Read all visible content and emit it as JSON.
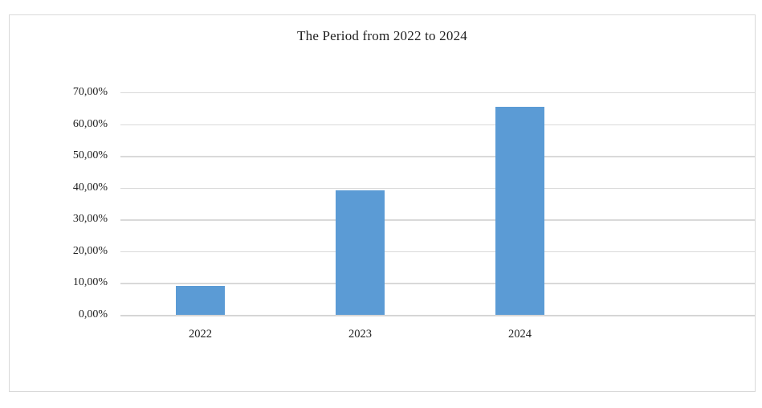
{
  "chart_data": {
    "type": "bar",
    "title": "The Period from 2022 to 2024",
    "categories": [
      "2022",
      "2023",
      "2024"
    ],
    "values": [
      9.0,
      39.2,
      65.5
    ],
    "series_unit": "percent",
    "xlabel": "",
    "ylabel": "",
    "ylim": [
      0,
      70
    ],
    "ytick_step": 10,
    "ytick_labels": [
      "0,00%",
      "10,00%",
      "20,00%",
      "30,00%",
      "40,00%",
      "50,00%",
      "60,00%",
      "70,00%"
    ],
    "grid": true,
    "legend": false,
    "colors": {
      "bar": "#5B9BD5",
      "gridline": "#D9D9D9",
      "frame_border": "#D9D9D9",
      "text": "#1f1f1f",
      "background": "#ffffff"
    }
  }
}
